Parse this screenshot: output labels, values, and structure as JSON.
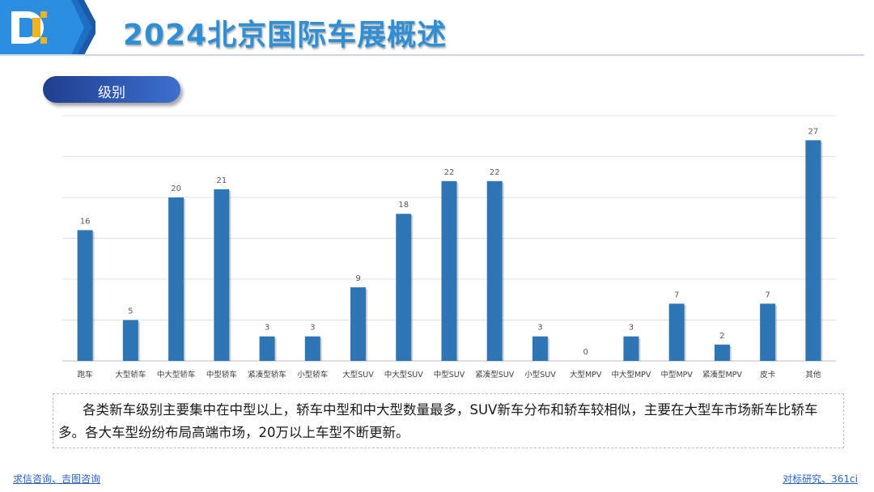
{
  "header": {
    "title": "2024北京国际车展概述"
  },
  "section": {
    "label": "级别"
  },
  "chart_data": {
    "type": "bar",
    "categories": [
      "跑车",
      "大型轿车",
      "中大型轿车",
      "中型轿车",
      "紧凑型轿车",
      "小型轿车",
      "大型SUV",
      "中大型SUV",
      "中型SUV",
      "紧凑型SUV",
      "小型SUV",
      "大型MPV",
      "中大型MPV",
      "中型MPV",
      "紧凑型MPV",
      "皮卡",
      "其他"
    ],
    "values": [
      16,
      5,
      20,
      21,
      3,
      3,
      9,
      18,
      22,
      22,
      3,
      0,
      3,
      7,
      2,
      7,
      27
    ],
    "ylim": [
      0,
      30
    ],
    "grid": true,
    "bar_color": "#2e75b6"
  },
  "summary": {
    "text": "各类新车级别主要集中在中型以上，轿车中型和中大型数量最多，SUV新车分布和轿车较相似，主要在大型车市场新车比轿车多。各大车型纷纷布局高端市场，20万以上车型不断更新。"
  },
  "footer": {
    "left": "求信咨询、吉图咨询",
    "right": "对标研究、361ci"
  },
  "colors": {
    "title": "#2f8fd6",
    "pill_start": "#1f3f8f",
    "pill_end": "#3d6fd0",
    "footer_link": "#2a62c9"
  }
}
